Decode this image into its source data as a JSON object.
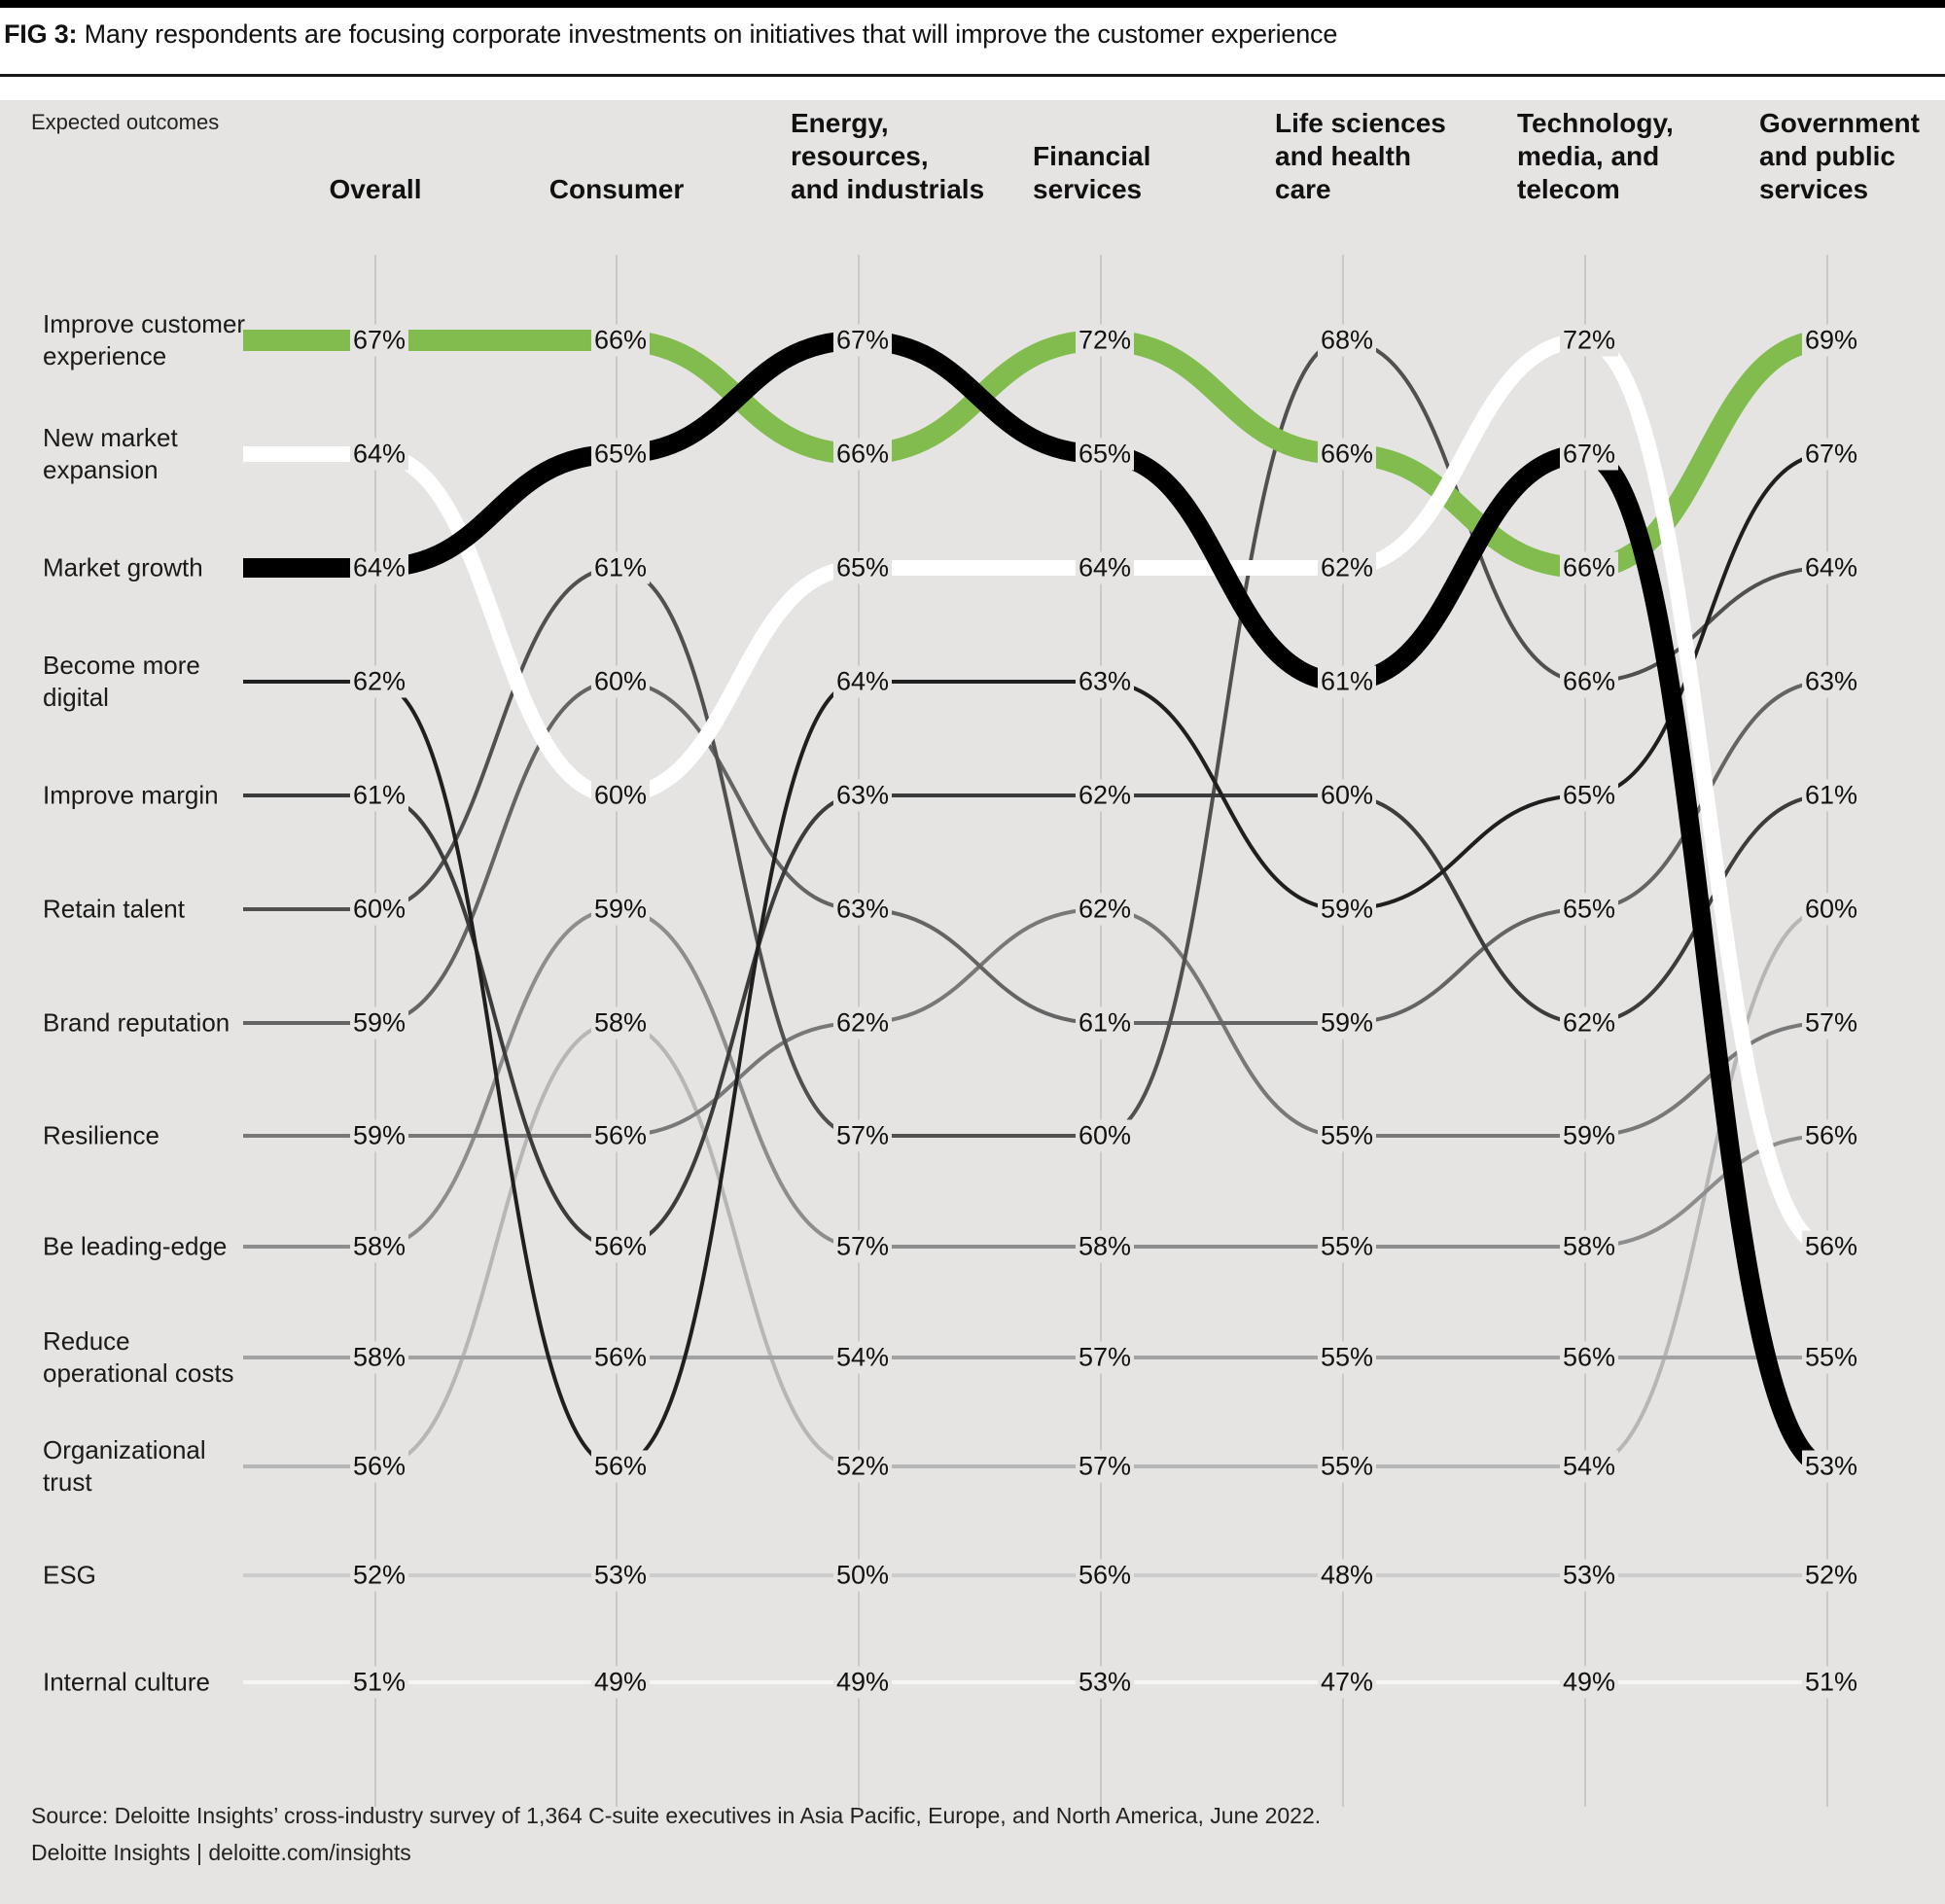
{
  "header": {
    "fig_label": "FIG 3:",
    "title": "Many respondents are focusing corporate investments on initiatives that will improve the customer experience"
  },
  "chart": {
    "subtitle": "Expected outcomes"
  },
  "colors": {
    "background": "#e5e4e2",
    "gridline": "#c9c9c7",
    "accent_green": "#82bc4e",
    "text": "#111111"
  },
  "chart_data": {
    "type": "line",
    "subtype": "bump-chart",
    "title": "Expected outcomes",
    "legend_position": "left-row-labels",
    "grid": "vertical-only",
    "columns": [
      {
        "label": "Overall",
        "align": "center"
      },
      {
        "label": "Consumer",
        "align": "center"
      },
      {
        "label": "Energy,\nresources,\nand industrials",
        "align": "left"
      },
      {
        "label": "Financial\nservices",
        "align": "left"
      },
      {
        "label": "Life sciences\nand health\ncare",
        "align": "left"
      },
      {
        "label": "Technology,\nmedia, and\ntelecom",
        "align": "left"
      },
      {
        "label": "Government\nand public\nservices",
        "align": "left"
      }
    ],
    "value_suffix": "%",
    "series": [
      {
        "name": "Improve customer experience",
        "color": "#82bc4e",
        "values": [
          67,
          66,
          66,
          72,
          66,
          66,
          69
        ],
        "slots": [
          1,
          1,
          2,
          1,
          2,
          3,
          1
        ]
      },
      {
        "name": "New market expansion",
        "color": "#ffffff",
        "values": [
          64,
          60,
          65,
          64,
          62,
          72,
          56
        ],
        "slots": [
          2,
          5,
          3,
          3,
          3,
          1,
          9
        ]
      },
      {
        "name": "Market growth",
        "color": "#000000",
        "values": [
          64,
          65,
          67,
          65,
          61,
          67,
          53
        ],
        "slots": [
          3,
          2,
          1,
          2,
          4,
          2,
          11
        ]
      },
      {
        "name": "Become more digital",
        "color": "#1f1f1f",
        "values": [
          62,
          56,
          64,
          63,
          59,
          65,
          67
        ],
        "slots": [
          4,
          11,
          4,
          4,
          6,
          5,
          2
        ]
      },
      {
        "name": "Improve margin",
        "color": "#3c3c3c",
        "values": [
          61,
          56,
          63,
          62,
          60,
          62,
          61
        ],
        "slots": [
          5,
          9,
          5,
          5,
          5,
          7,
          5
        ]
      },
      {
        "name": "Retain talent",
        "color": "#505050",
        "values": [
          60,
          61,
          57,
          60,
          68,
          66,
          64
        ],
        "slots": [
          6,
          3,
          8,
          8,
          1,
          4,
          3
        ]
      },
      {
        "name": "Brand reputation",
        "color": "#646464",
        "values": [
          59,
          60,
          63,
          61,
          59,
          65,
          63
        ],
        "slots": [
          7,
          4,
          6,
          7,
          7,
          6,
          4
        ]
      },
      {
        "name": "Resilience",
        "color": "#787878",
        "values": [
          59,
          56,
          62,
          62,
          55,
          59,
          57
        ],
        "slots": [
          8,
          8,
          7,
          6,
          8,
          8,
          7
        ]
      },
      {
        "name": "Be leading-edge",
        "color": "#8d8d8d",
        "values": [
          58,
          59,
          57,
          58,
          55,
          58,
          56
        ],
        "slots": [
          9,
          6,
          9,
          9,
          9,
          9,
          8
        ]
      },
      {
        "name": "Reduce operational costs",
        "color": "#a2a2a2",
        "values": [
          58,
          56,
          54,
          57,
          55,
          56,
          55
        ],
        "slots": [
          10,
          10,
          10,
          10,
          10,
          10,
          10
        ]
      },
      {
        "name": "Organizational trust",
        "color": "#b6b6b6",
        "values": [
          56,
          58,
          52,
          57,
          55,
          54,
          60
        ],
        "slots": [
          11,
          7,
          11,
          11,
          11,
          11,
          6
        ]
      },
      {
        "name": "ESG",
        "color": "#cccccc",
        "values": [
          52,
          53,
          50,
          56,
          48,
          53,
          52
        ],
        "slots": [
          12,
          12,
          12,
          12,
          12,
          12,
          12
        ]
      },
      {
        "name": "Internal culture",
        "color": "#f5f5f4",
        "values": [
          51,
          49,
          49,
          53,
          47,
          49,
          51
        ],
        "slots": [
          13,
          13,
          13,
          13,
          13,
          13,
          13
        ]
      }
    ]
  },
  "footer": {
    "source": "Source: Deloitte Insights’ cross-industry survey of 1,364 C-suite executives in Asia Pacific, Europe, and North America, June 2022.",
    "brand": "Deloitte Insights | deloitte.com/insights"
  }
}
